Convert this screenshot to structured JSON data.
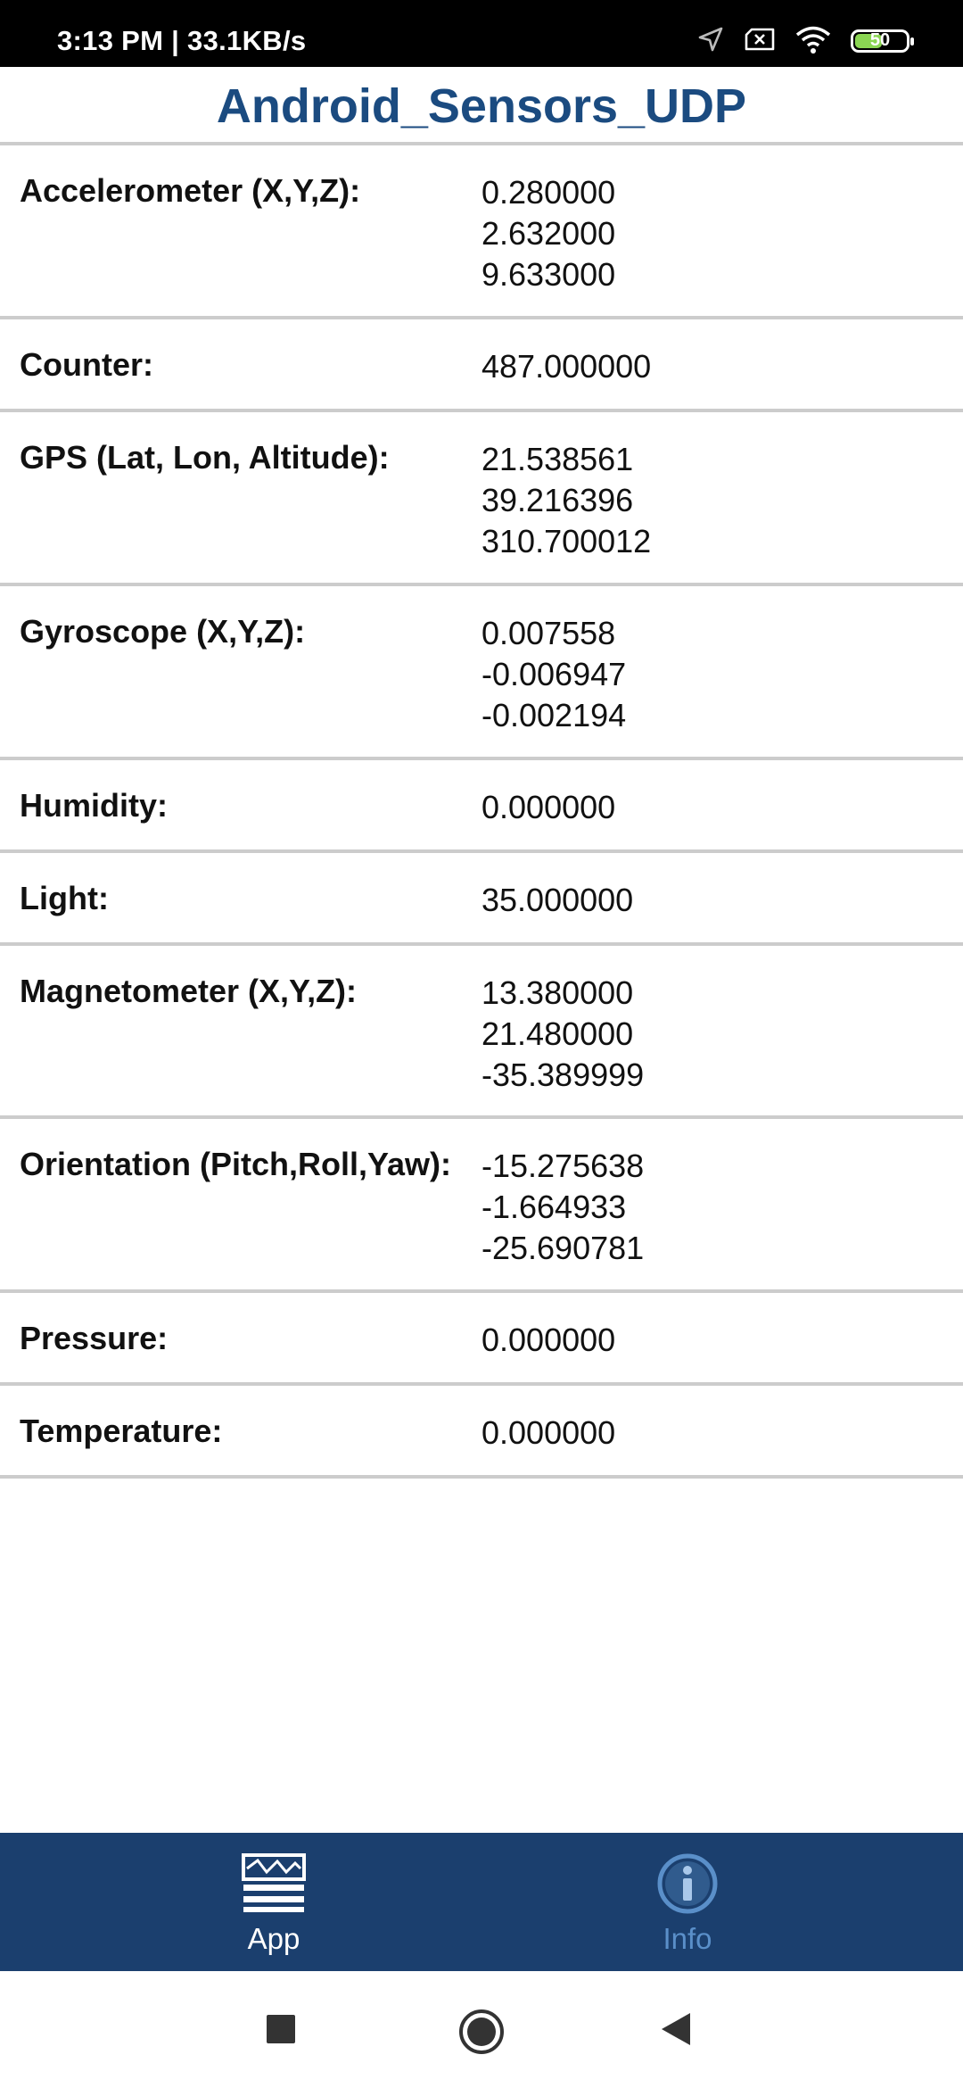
{
  "status_bar": {
    "time_speed": "3:13 PM | 33.1KB/s",
    "battery_level": "50",
    "icons": [
      "location-arrow-icon",
      "no-sim-icon",
      "wifi-icon",
      "battery-icon"
    ]
  },
  "app": {
    "title": "Android_Sensors_UDP",
    "title_color": "#1b4b80"
  },
  "sensors": [
    {
      "label": "Accelerometer (X,Y,Z):",
      "values": [
        "0.280000",
        "2.632000",
        "9.633000"
      ]
    },
    {
      "label": "Counter:",
      "values": [
        "487.000000"
      ]
    },
    {
      "label": "GPS (Lat, Lon, Altitude):",
      "values": [
        "21.538561",
        "39.216396",
        "310.700012"
      ]
    },
    {
      "label": "Gyroscope (X,Y,Z):",
      "values": [
        "0.007558",
        "-0.006947",
        "-0.002194"
      ]
    },
    {
      "label": "Humidity:",
      "values": [
        "0.000000"
      ]
    },
    {
      "label": "Light:",
      "values": [
        "35.000000"
      ]
    },
    {
      "label": "Magnetometer (X,Y,Z):",
      "values": [
        "13.380000",
        "21.480000",
        "-35.389999"
      ]
    },
    {
      "label": "Orientation (Pitch,Roll,Yaw):",
      "values": [
        "-15.275638",
        "-1.664933",
        "-25.690781"
      ]
    },
    {
      "label": "Pressure:",
      "values": [
        "0.000000"
      ]
    },
    {
      "label": "Temperature:",
      "values": [
        "0.000000"
      ]
    }
  ],
  "bottom_nav": {
    "background": "#1b3f6e",
    "items": [
      {
        "label": "App",
        "icon": "chart-lines-icon",
        "active": true,
        "color": "#ffffff"
      },
      {
        "label": "Info",
        "icon": "info-circle-icon",
        "active": false,
        "color": "#5a8fc9"
      }
    ]
  },
  "system_nav": {
    "icons": [
      "recents-square-icon",
      "home-circle-icon",
      "back-triangle-icon"
    ]
  }
}
